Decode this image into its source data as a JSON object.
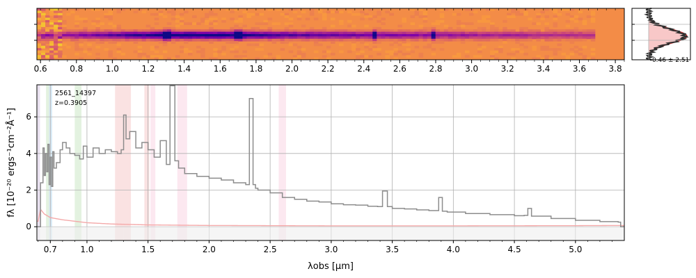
{
  "colors": {
    "spectrum": "#8c8c8c",
    "error": "#f4a9a9",
    "grid": "#b0b0b0",
    "profile_data": "#303030",
    "profile_model": "#cc3333",
    "profile_fill": "#f8c8c8",
    "line_highlight_blue": "#9ecbe8",
    "line_highlight_green": "#b9dfb2",
    "line_highlight_red": "#f3b6b6",
    "line_highlight_pink": "#f7c6d9",
    "line_highlight_purple": "#c9b4d9"
  },
  "chart_data": [
    {
      "type": "heatmap",
      "panel": "2D spectrum",
      "colormap": "plasma",
      "x_ticks": [
        "0.6",
        "0.8",
        "1.0",
        "1.2",
        "1.4",
        "1.6",
        "1.8",
        "2.0",
        "2.2",
        "2.4",
        "2.6",
        "2.8",
        "3.0",
        "3.2",
        "3.4",
        "3.6",
        "3.8"
      ],
      "x_tick_values": [
        0.6,
        0.8,
        1.0,
        1.2,
        1.4,
        1.6,
        1.8,
        2.0,
        2.2,
        2.4,
        2.6,
        2.8,
        3.0,
        3.2,
        3.4,
        3.6,
        3.8
      ],
      "xlim": [
        0.58,
        3.85
      ],
      "trace_knots": [
        0.62,
        0.9,
        1.3,
        1.7,
        2.0,
        2.8,
        3.85
      ],
      "trace_intensity": [
        0.45,
        0.65,
        1.0,
        0.95,
        0.75,
        0.55,
        0.35
      ],
      "bright_spots": [
        1.3,
        1.7,
        2.46,
        2.79
      ]
    },
    {
      "type": "line",
      "panel": "1D profile",
      "annotation": "-0.46 ± 2.51"
    },
    {
      "type": "line",
      "panel": "1D spectrum",
      "annotation_id": "2561_14397",
      "annotation_z": "z=0.3905",
      "xlabel": "λobs [μm]",
      "ylabel": "fλ [10⁻²⁰ ergs⁻¹cm⁻²Å⁻¹]",
      "xlim": [
        0.59,
        5.4
      ],
      "ylim": [
        -0.75,
        7.75
      ],
      "x_ticks": [
        "0.7",
        "1.0",
        "1.5",
        "2.0",
        "2.5",
        "3.0",
        "3.5",
        "4.0",
        "4.5",
        "5.0"
      ],
      "x_tick_values": [
        0.7,
        1.0,
        1.5,
        2.0,
        2.5,
        3.0,
        3.5,
        4.0,
        4.5,
        5.0
      ],
      "y_ticks": [
        "0",
        "2",
        "4",
        "6"
      ],
      "y_tick_values": [
        0,
        2,
        4,
        6
      ],
      "grid": true,
      "series": [
        {
          "role": "flux",
          "x": [
            0.62,
            0.64,
            0.65,
            0.66,
            0.67,
            0.68,
            0.69,
            0.7,
            0.71,
            0.72,
            0.73,
            0.75,
            0.78,
            0.8,
            0.83,
            0.86,
            0.9,
            0.94,
            0.97,
            1.0,
            1.05,
            1.1,
            1.15,
            1.2,
            1.25,
            1.28,
            1.3,
            1.32,
            1.35,
            1.4,
            1.45,
            1.5,
            1.55,
            1.6,
            1.65,
            1.68,
            1.72,
            1.75,
            1.8,
            1.9,
            2.0,
            2.1,
            2.2,
            2.3,
            2.33,
            2.36,
            2.38,
            2.4,
            2.5,
            2.6,
            2.7,
            2.8,
            2.9,
            3.0,
            3.1,
            3.2,
            3.3,
            3.38,
            3.42,
            3.46,
            3.5,
            3.6,
            3.7,
            3.8,
            3.85,
            3.88,
            3.91,
            3.95,
            4.1,
            4.3,
            4.5,
            4.58,
            4.61,
            4.64,
            4.8,
            5.0,
            5.2,
            5.35
          ],
          "y": [
            2.4,
            4.3,
            2.8,
            4.0,
            3.0,
            4.5,
            2.3,
            3.8,
            2.2,
            4.1,
            3.2,
            3.5,
            4.2,
            4.6,
            4.3,
            4.0,
            3.9,
            3.7,
            4.4,
            3.8,
            4.3,
            4.0,
            4.2,
            4.1,
            4.0,
            4.2,
            6.1,
            4.8,
            5.2,
            4.3,
            4.6,
            4.2,
            3.8,
            4.7,
            3.4,
            7.7,
            3.6,
            3.2,
            2.9,
            2.75,
            2.65,
            2.55,
            2.4,
            2.3,
            7.0,
            2.3,
            2.1,
            2.0,
            1.85,
            1.6,
            1.5,
            1.4,
            1.35,
            1.25,
            1.2,
            1.18,
            1.12,
            1.1,
            1.95,
            1.1,
            1.0,
            0.97,
            0.92,
            0.88,
            0.88,
            1.6,
            0.85,
            0.8,
            0.72,
            0.66,
            0.6,
            0.62,
            1.0,
            0.58,
            0.45,
            0.35,
            0.28,
            0.25
          ]
        },
        {
          "role": "error",
          "x": [
            0.6,
            0.62,
            0.65,
            0.7,
            0.8,
            0.9,
            1.0,
            1.2,
            1.5,
            2.0,
            3.0,
            4.0,
            5.0,
            5.4
          ],
          "y": [
            0.3,
            0.95,
            0.7,
            0.5,
            0.38,
            0.3,
            0.22,
            0.15,
            0.1,
            0.07,
            0.05,
            0.05,
            0.06,
            0.07
          ]
        }
      ],
      "highlight_bands": [
        {
          "x0": 0.595,
          "x1": 0.615,
          "color": "purple"
        },
        {
          "x0": 0.665,
          "x1": 0.69,
          "color": "green"
        },
        {
          "x0": 0.69,
          "x1": 0.715,
          "color": "blue"
        },
        {
          "x0": 0.9,
          "x1": 0.955,
          "color": "green"
        },
        {
          "x0": 1.23,
          "x1": 1.3,
          "color": "red"
        },
        {
          "x0": 1.3,
          "x1": 1.36,
          "color": "red"
        },
        {
          "x0": 1.47,
          "x1": 1.51,
          "color": "red"
        },
        {
          "x0": 1.52,
          "x1": 1.56,
          "color": "pink"
        },
        {
          "x0": 1.74,
          "x1": 1.82,
          "color": "pink"
        },
        {
          "x0": 2.57,
          "x1": 2.63,
          "color": "pink"
        }
      ]
    }
  ]
}
